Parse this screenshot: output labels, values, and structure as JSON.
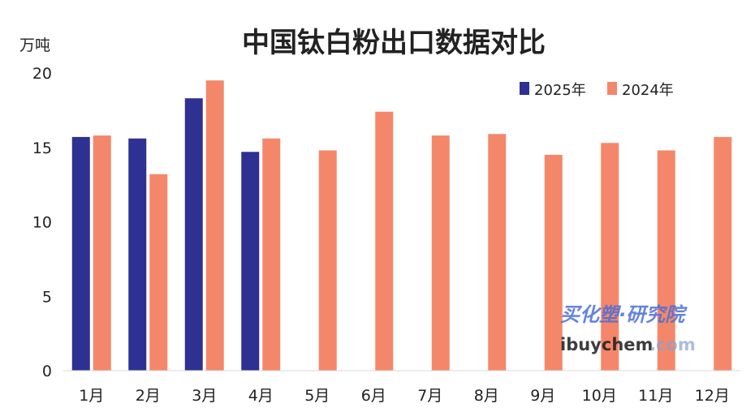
{
  "chart_data": {
    "type": "bar",
    "title": "中国钛白粉出口数据对比",
    "ylabel": "万吨",
    "xlabel": "",
    "ylim": [
      0,
      20
    ],
    "yticks": [
      0,
      5,
      10,
      15,
      20
    ],
    "grid": false,
    "legend": "top-right",
    "categories": [
      "1月",
      "2月",
      "3月",
      "4月",
      "5月",
      "6月",
      "7月",
      "8月",
      "9月",
      "10月",
      "11月",
      "12月"
    ],
    "series": [
      {
        "name": "2025年",
        "color": "#2e3192",
        "values": [
          15.7,
          15.6,
          18.3,
          14.7,
          null,
          null,
          null,
          null,
          null,
          null,
          null,
          null
        ]
      },
      {
        "name": "2024年",
        "color": "#f4876a",
        "values": [
          15.8,
          13.2,
          19.5,
          15.6,
          14.8,
          17.4,
          15.8,
          15.9,
          14.5,
          15.3,
          14.8,
          15.7
        ]
      }
    ]
  },
  "watermark": {
    "line1": "买化塑·研究院",
    "line2": "ibuychem",
    "line3": ".com"
  }
}
